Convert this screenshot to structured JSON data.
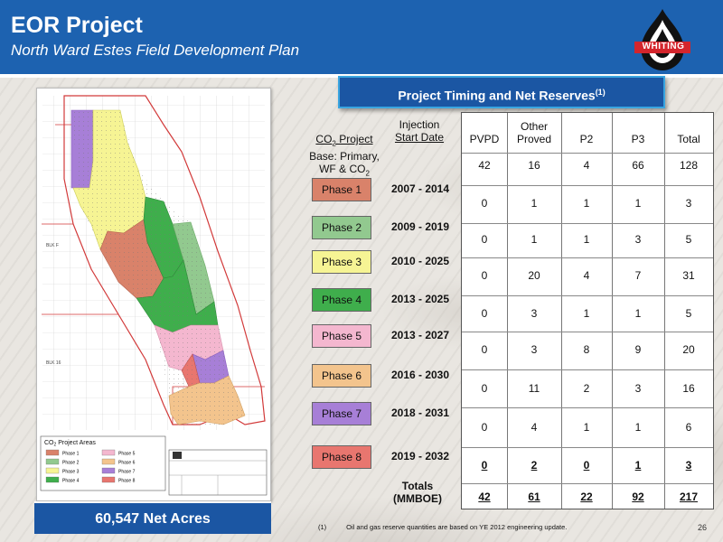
{
  "header": {
    "title": "EOR Project",
    "subtitle": "North Ward Estes Field Development Plan",
    "logo_text": "WHITING"
  },
  "banner": {
    "text": "Project Timing and Net Reserves",
    "superscript": "(1)"
  },
  "map": {
    "legend_title": "CO2 Project Areas",
    "legend_items": [
      {
        "label": "Phase 1",
        "color": "#d9826a"
      },
      {
        "label": "Phase 2",
        "color": "#92c98f"
      },
      {
        "label": "Phase 3",
        "color": "#f6f494"
      },
      {
        "label": "Phase 4",
        "color": "#3fae4c"
      },
      {
        "label": "Phase 5",
        "color": "#f4b7cf"
      },
      {
        "label": "Phase 6",
        "color": "#f3c48d"
      },
      {
        "label": "Phase 7",
        "color": "#a77fd7"
      },
      {
        "label": "Phase 8",
        "color": "#e8766f"
      }
    ],
    "block_labels": [
      "BLK F",
      "BLK 16"
    ]
  },
  "net_acres": "60,547 Net Acres",
  "footnote": {
    "mark": "(1)",
    "text": "Oil and gas reserve quantities are based on YE 2012 engineering update."
  },
  "page_number": "26",
  "table_labels": {
    "co2_project_a": "CO",
    "co2_project_sub": "2",
    "co2_project_b": " Project",
    "injection_1": "Injection",
    "injection_2": "Start Date",
    "base_1": "Base: Primary,",
    "base_2a": "WF & CO",
    "base_2sub": "2",
    "totals_1": "Totals",
    "totals_2": "(MMBOE)"
  },
  "chart_data": {
    "type": "table",
    "columns": [
      "PVPD",
      "Other Proved",
      "P2",
      "P3",
      "Total"
    ],
    "rows": [
      {
        "label": "Base: Primary, WF & CO2",
        "dates": "",
        "color": "",
        "values": [
          "42",
          "16",
          "4",
          "66",
          "128"
        ]
      },
      {
        "label": "Phase 1",
        "dates": "2007 - 2014",
        "color": "#d9826a",
        "values": [
          "0",
          "1",
          "1",
          "1",
          "3"
        ]
      },
      {
        "label": "Phase 2",
        "dates": "2009 - 2019",
        "color": "#92c98f",
        "values": [
          "0",
          "1",
          "1",
          "3",
          "5"
        ]
      },
      {
        "label": "Phase 3",
        "dates": "2010 - 2025",
        "color": "#f6f494",
        "values": [
          "0",
          "20",
          "4",
          "7",
          "31"
        ]
      },
      {
        "label": "Phase 4",
        "dates": "2013 - 2025",
        "color": "#3fae4c",
        "values": [
          "0",
          "3",
          "1",
          "1",
          "5"
        ]
      },
      {
        "label": "Phase 5",
        "dates": "2013 - 2027",
        "color": "#f4b7cf",
        "values": [
          "0",
          "3",
          "8",
          "9",
          "20"
        ]
      },
      {
        "label": "Phase 6",
        "dates": "2016 - 2030",
        "color": "#f3c48d",
        "values": [
          "0",
          "11",
          "2",
          "3",
          "16"
        ]
      },
      {
        "label": "Phase 7",
        "dates": "2018 - 2031",
        "color": "#a77fd7",
        "values": [
          "0",
          "4",
          "1",
          "1",
          "6"
        ]
      },
      {
        "label": "Phase 8",
        "dates": "2019 - 2032",
        "color": "#e8766f",
        "values": [
          "0",
          "2",
          "0",
          "1",
          "3"
        ]
      }
    ],
    "totals": {
      "label": "Totals (MMBOE)",
      "values": [
        "42",
        "61",
        "22",
        "92",
        "217"
      ]
    }
  }
}
